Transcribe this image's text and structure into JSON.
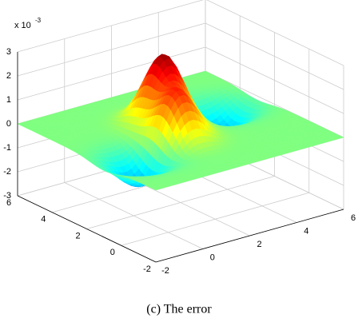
{
  "chart_data": {
    "type": "surface",
    "caption": "(c) The error",
    "z_multiplier": {
      "base": "x 10",
      "exponent": "-3"
    },
    "xlim": [
      -2,
      6
    ],
    "ylim": [
      -2,
      6
    ],
    "zlim": [
      -3,
      3
    ],
    "xticks": [
      -2,
      0,
      2,
      4,
      6
    ],
    "yticks": [
      -2,
      0,
      2,
      4,
      6
    ],
    "zticks": [
      -3,
      -2,
      -1,
      0,
      1,
      2,
      3
    ],
    "grid": true,
    "colormap": "jet",
    "bumps": [
      {
        "x": 2,
        "y": 3,
        "z": 2.8,
        "width": 0.7
      },
      {
        "x": 1.3,
        "y": 1.3,
        "z": 2.1,
        "width": 0.7
      },
      {
        "x": -0.5,
        "y": 1,
        "z": -1.3,
        "width": 0.8
      },
      {
        "x": 4.4,
        "y": 3,
        "z": -1.2,
        "width": 0.8
      }
    ]
  }
}
